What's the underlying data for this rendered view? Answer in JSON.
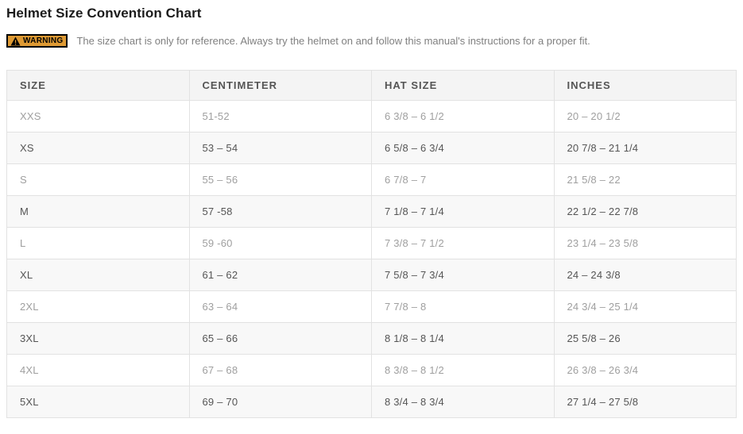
{
  "page": {
    "title": "Helmet Size Convention Chart",
    "warning": {
      "badge_label": "WARNING",
      "icon": "warning-triangle-icon",
      "text": "The size chart is only for reference. Always try the helmet on and follow this manual's instructions for a proper fit."
    }
  },
  "table": {
    "columns": [
      "SIZE",
      "CENTIMETER",
      "HAT SIZE",
      "INCHES"
    ],
    "rows": [
      [
        "XXS",
        "51-52",
        "6 3/8 – 6 1/2",
        "20 – 20 1/2"
      ],
      [
        "XS",
        "53 – 54",
        "6 5/8 – 6 3/4",
        "20 7/8 – 21 1/4"
      ],
      [
        "S",
        "55 – 56",
        "6 7/8 – 7",
        "21 5/8 – 22"
      ],
      [
        "M",
        "57 -58",
        "7 1/8 – 7 1/4",
        "22 1/2 – 22 7/8"
      ],
      [
        "L",
        "59 -60",
        "7 3/8 – 7 1/2",
        "23 1/4 – 23 5/8"
      ],
      [
        "XL",
        "61 – 62",
        "7 5/8 – 7 3/4",
        "24 – 24 3/8"
      ],
      [
        "2XL",
        "63 – 64",
        "7 7/8 – 8",
        "24 3/4 – 25 1/4"
      ],
      [
        "3XL",
        "65 – 66",
        "8 1/8 – 8 1/4",
        "25 5/8 – 26"
      ],
      [
        "4XL",
        "67 – 68",
        "8 3/8 – 8 1/2",
        "26 3/8 – 26 3/4"
      ],
      [
        "5XL",
        "69 – 70",
        "8 3/4 – 8 3/4",
        "27 1/4 – 27 5/8"
      ]
    ]
  },
  "chart_data": {
    "type": "table",
    "title": "Helmet Size Convention Chart",
    "columns": [
      "SIZE",
      "CENTIMETER",
      "HAT SIZE",
      "INCHES"
    ],
    "rows": [
      [
        "XXS",
        "51-52",
        "6 3/8 – 6 1/2",
        "20 – 20 1/2"
      ],
      [
        "XS",
        "53 – 54",
        "6 5/8 – 6 3/4",
        "20 7/8 – 21 1/4"
      ],
      [
        "S",
        "55 – 56",
        "6 7/8 – 7",
        "21 5/8 – 22"
      ],
      [
        "M",
        "57 -58",
        "7 1/8 – 7 1/4",
        "22 1/2 – 22 7/8"
      ],
      [
        "L",
        "59 -60",
        "7 3/8 – 7 1/2",
        "23 1/4 – 23 5/8"
      ],
      [
        "XL",
        "61 – 62",
        "7 5/8 – 7 3/4",
        "24 – 24 3/8"
      ],
      [
        "2XL",
        "63 – 64",
        "7 7/8 – 8",
        "24 3/4 – 25 1/4"
      ],
      [
        "3XL",
        "65 – 66",
        "8 1/8 – 8 1/4",
        "25 5/8 – 26"
      ],
      [
        "4XL",
        "67 – 68",
        "8 3/8 – 8 1/2",
        "26 3/8 – 26 3/4"
      ],
      [
        "5XL",
        "69 – 70",
        "8 3/4 – 8 3/4",
        "27 1/4 – 27 5/8"
      ]
    ]
  },
  "colors": {
    "warning_badge_bg": "#DD9933",
    "warning_badge_border": "#000000",
    "table_border": "#e2e2e2",
    "header_bg": "#f4f4f4",
    "row_alt_bg": "#f8f8f8",
    "text_dark": "#555555",
    "text_light": "#9f9f9f"
  }
}
